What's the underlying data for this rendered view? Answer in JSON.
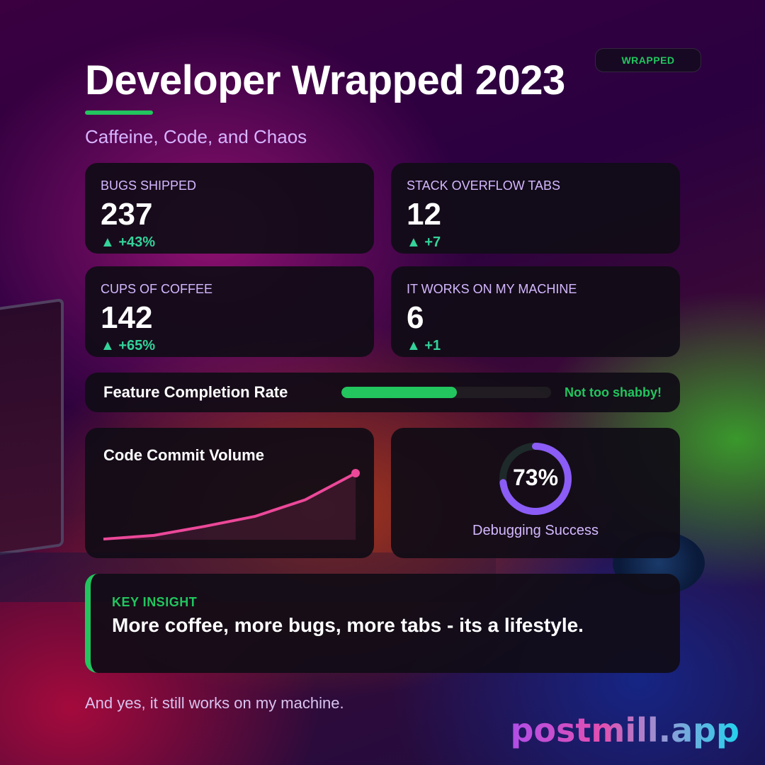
{
  "header": {
    "badge": "WRAPPED",
    "title": "Developer Wrapped 2023",
    "subtitle": "Caffeine, Code, and Chaos"
  },
  "stats": [
    {
      "label": "BUGS SHIPPED",
      "value": "237",
      "delta": "▲ +43%"
    },
    {
      "label": "STACK OVERFLOW TABS",
      "value": "12",
      "delta": "▲ +7"
    },
    {
      "label": "CUPS OF COFFEE",
      "value": "142",
      "delta": "▲ +65%"
    },
    {
      "label": "IT WORKS ON MY MACHINE",
      "value": "6",
      "delta": "▲ +1"
    }
  ],
  "completion": {
    "label": "Feature Completion Rate",
    "fraction": 0.55,
    "status": "Not too shabby!",
    "color": "#22c55e"
  },
  "commit_chart": {
    "title": "Code Commit Volume",
    "line_color": "#ec4899",
    "chart_data": {
      "type": "area",
      "x": [
        0,
        1,
        2,
        3,
        4,
        5
      ],
      "values": [
        2,
        13,
        40,
        70,
        120,
        200
      ],
      "ylim": [
        0,
        200
      ]
    }
  },
  "debugging": {
    "value": "73%",
    "fraction": 0.73,
    "label": "Debugging Success",
    "color": "#8b5cf6"
  },
  "insight": {
    "label": "KEY INSIGHT",
    "text": "More coffee, more bugs, more tabs - its a lifestyle."
  },
  "footer": {
    "text": "And yes, it still works on my machine.",
    "brand": "postmill.app"
  }
}
